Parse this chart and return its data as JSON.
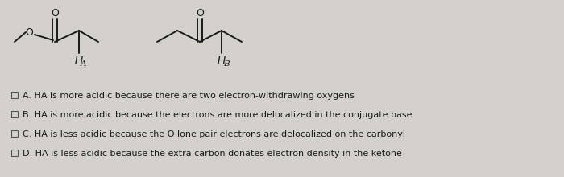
{
  "bg_color": "#d4d0cb",
  "line_color": "#1a1a1a",
  "text_color": "#1a1a1a",
  "options": [
    "A. HA is more acidic because there are two electron-withdrawing oxygens",
    "B. HA is more acidic because the electrons are more delocalized in the conjugate base",
    "C. HA is less acidic because the O lone pair electrons are delocalized on the carbonyl",
    "D. HA is less acidic because the extra carbon donates electron density in the ketone"
  ],
  "font_size_options": 8.0,
  "font_size_labels": 10
}
